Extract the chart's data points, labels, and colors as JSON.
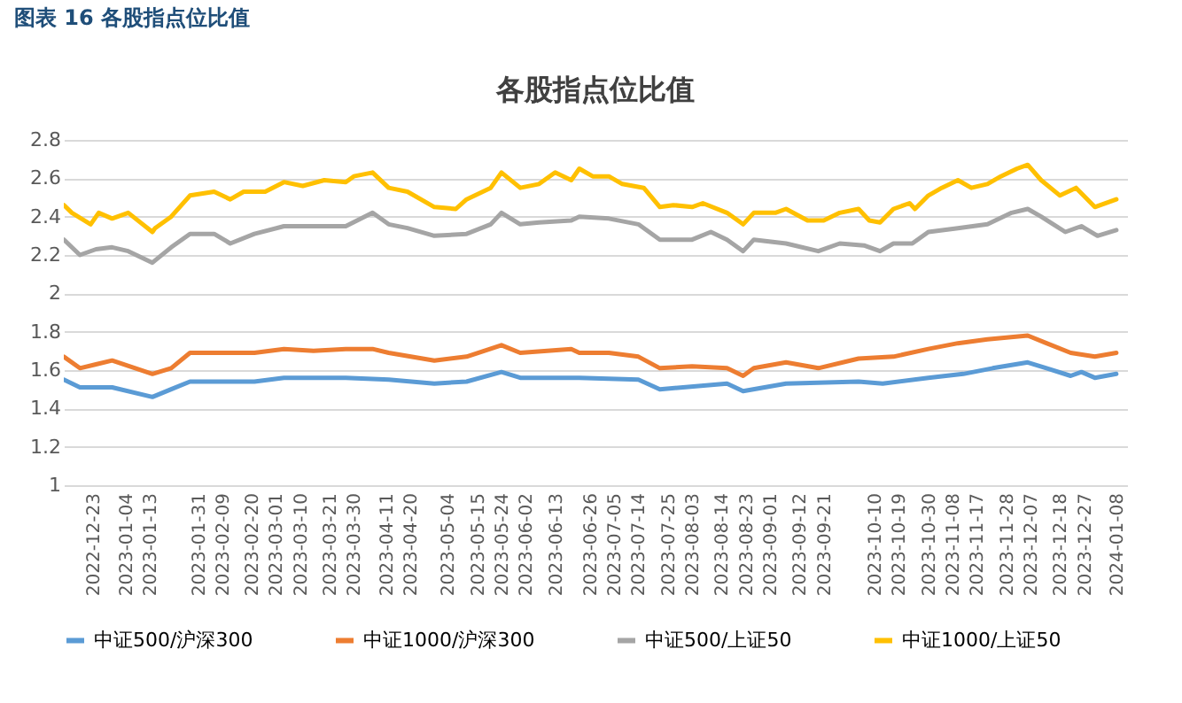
{
  "chart_data": {
    "type": "line",
    "title": "各股指点位比值",
    "annotations": [
      "图表 16  各股指点位比值"
    ],
    "ylim": [
      1,
      2.8
    ],
    "yticks": [
      1,
      1.2,
      1.4,
      1.6,
      1.8,
      2,
      2.2,
      2.4,
      2.6,
      2.8
    ],
    "xlim": [
      "2022-12-12",
      "2024-01-12"
    ],
    "xticks": [
      "2022-12-23",
      "2023-01-04",
      "2023-01-13",
      "2023-01-31",
      "2023-02-09",
      "2023-02-20",
      "2023-03-01",
      "2023-03-10",
      "2023-03-21",
      "2023-03-30",
      "2023-04-11",
      "2023-04-20",
      "2023-05-04",
      "2023-05-15",
      "2023-05-24",
      "2023-06-02",
      "2023-06-13",
      "2023-06-26",
      "2023-07-05",
      "2023-07-14",
      "2023-07-25",
      "2023-08-03",
      "2023-08-14",
      "2023-08-23",
      "2023-09-01",
      "2023-09-12",
      "2023-09-21",
      "2023-10-10",
      "2023-10-19",
      "2023-10-30",
      "2023-11-08",
      "2023-11-17",
      "2023-11-28",
      "2023-12-07",
      "2023-12-18",
      "2023-12-27",
      "2024-01-08"
    ],
    "grid": "y",
    "legend": "bottom",
    "marker": "none",
    "line_style": "solid",
    "series": [
      {
        "name": "中证500/沪深300",
        "color": "#5b9bd5",
        "x": [
          "2022-12-12",
          "2022-12-18",
          "2022-12-30",
          "2023-01-14",
          "2023-01-21",
          "2023-01-28",
          "2023-02-21",
          "2023-03-04",
          "2023-03-27",
          "2023-04-12",
          "2023-04-29",
          "2023-05-11",
          "2023-05-24",
          "2023-05-31",
          "2023-06-22",
          "2023-07-14",
          "2023-07-22",
          "2023-08-16",
          "2023-08-22",
          "2023-09-07",
          "2023-10-04",
          "2023-10-13",
          "2023-10-30",
          "2023-11-12",
          "2023-11-23",
          "2023-12-06",
          "2023-12-13",
          "2023-12-22",
          "2023-12-26",
          "2023-12-31",
          "2024-01-08"
        ],
        "values": [
          1.55,
          1.51,
          1.51,
          1.46,
          1.5,
          1.54,
          1.54,
          1.56,
          1.56,
          1.55,
          1.53,
          1.54,
          1.59,
          1.56,
          1.56,
          1.55,
          1.5,
          1.53,
          1.49,
          1.53,
          1.54,
          1.53,
          1.56,
          1.58,
          1.61,
          1.64,
          1.61,
          1.57,
          1.59,
          1.56,
          1.58
        ]
      },
      {
        "name": "中证1000/沪深300",
        "color": "#ed7d31",
        "x": [
          "2022-12-12",
          "2022-12-18",
          "2022-12-24",
          "2022-12-30",
          "2023-01-14",
          "2023-01-21",
          "2023-01-28",
          "2023-02-06",
          "2023-02-21",
          "2023-03-04",
          "2023-03-15",
          "2023-03-27",
          "2023-04-06",
          "2023-04-12",
          "2023-04-29",
          "2023-05-11",
          "2023-05-24",
          "2023-05-31",
          "2023-06-19",
          "2023-06-22",
          "2023-07-03",
          "2023-07-14",
          "2023-07-22",
          "2023-08-03",
          "2023-08-16",
          "2023-08-22",
          "2023-08-26",
          "2023-09-07",
          "2023-09-19",
          "2023-10-04",
          "2023-10-17",
          "2023-10-30",
          "2023-11-10",
          "2023-11-21",
          "2023-12-06",
          "2023-12-13",
          "2023-12-22",
          "2023-12-31",
          "2024-01-08"
        ],
        "values": [
          1.67,
          1.61,
          1.63,
          1.65,
          1.58,
          1.61,
          1.69,
          1.69,
          1.69,
          1.71,
          1.7,
          1.71,
          1.71,
          1.69,
          1.65,
          1.67,
          1.73,
          1.69,
          1.71,
          1.69,
          1.69,
          1.67,
          1.61,
          1.62,
          1.61,
          1.57,
          1.61,
          1.64,
          1.61,
          1.66,
          1.67,
          1.71,
          1.74,
          1.76,
          1.78,
          1.74,
          1.69,
          1.67,
          1.69
        ]
      },
      {
        "name": "中证500/上证50",
        "color": "#a5a5a5",
        "x": [
          "2022-12-12",
          "2022-12-18",
          "2022-12-24",
          "2022-12-30",
          "2023-01-05",
          "2023-01-14",
          "2023-01-21",
          "2023-01-28",
          "2023-02-06",
          "2023-02-12",
          "2023-02-21",
          "2023-03-04",
          "2023-03-15",
          "2023-03-27",
          "2023-04-06",
          "2023-04-12",
          "2023-04-19",
          "2023-04-29",
          "2023-05-11",
          "2023-05-20",
          "2023-05-24",
          "2023-05-31",
          "2023-06-07",
          "2023-06-19",
          "2023-06-22",
          "2023-07-03",
          "2023-07-14",
          "2023-07-22",
          "2023-08-03",
          "2023-08-10",
          "2023-08-16",
          "2023-08-22",
          "2023-08-26",
          "2023-09-07",
          "2023-09-19",
          "2023-09-27",
          "2023-10-06",
          "2023-10-12",
          "2023-10-17",
          "2023-10-24",
          "2023-10-30",
          "2023-11-10",
          "2023-11-21",
          "2023-11-30",
          "2023-12-06",
          "2023-12-11",
          "2023-12-20",
          "2023-12-26",
          "2024-01-01",
          "2024-01-08"
        ],
        "values": [
          2.28,
          2.2,
          2.23,
          2.24,
          2.22,
          2.16,
          2.24,
          2.31,
          2.31,
          2.26,
          2.31,
          2.35,
          2.35,
          2.35,
          2.42,
          2.36,
          2.34,
          2.3,
          2.31,
          2.36,
          2.42,
          2.36,
          2.37,
          2.38,
          2.4,
          2.39,
          2.36,
          2.28,
          2.28,
          2.32,
          2.28,
          2.22,
          2.28,
          2.26,
          2.22,
          2.26,
          2.25,
          2.22,
          2.26,
          2.26,
          2.32,
          2.34,
          2.36,
          2.42,
          2.44,
          2.4,
          2.32,
          2.35,
          2.3,
          2.33
        ]
      },
      {
        "name": "中证1000/上证50",
        "color": "#ffc000",
        "x": [
          "2022-12-12",
          "2022-12-15",
          "2022-12-22",
          "2022-12-25",
          "2022-12-30",
          "2023-01-05",
          "2023-01-14",
          "2023-01-15",
          "2023-01-21",
          "2023-01-28",
          "2023-02-06",
          "2023-02-12",
          "2023-02-17",
          "2023-02-25",
          "2023-03-04",
          "2023-03-11",
          "2023-03-19",
          "2023-03-27",
          "2023-03-30",
          "2023-04-06",
          "2023-04-12",
          "2023-04-19",
          "2023-04-29",
          "2023-05-07",
          "2023-05-11",
          "2023-05-20",
          "2023-05-24",
          "2023-05-31",
          "2023-06-07",
          "2023-06-13",
          "2023-06-19",
          "2023-06-22",
          "2023-06-27",
          "2023-07-03",
          "2023-07-08",
          "2023-07-16",
          "2023-07-22",
          "2023-07-27",
          "2023-08-03",
          "2023-08-07",
          "2023-08-16",
          "2023-08-22",
          "2023-08-26",
          "2023-09-03",
          "2023-09-07",
          "2023-09-15",
          "2023-09-21",
          "2023-09-27",
          "2023-10-04",
          "2023-10-08",
          "2023-10-12",
          "2023-10-17",
          "2023-10-23",
          "2023-10-25",
          "2023-10-30",
          "2023-11-04",
          "2023-11-10",
          "2023-11-15",
          "2023-11-21",
          "2023-11-26",
          "2023-12-02",
          "2023-12-06",
          "2023-12-11",
          "2023-12-18",
          "2023-12-24",
          "2023-12-31",
          "2024-01-08"
        ],
        "values": [
          2.46,
          2.42,
          2.36,
          2.42,
          2.39,
          2.42,
          2.32,
          2.34,
          2.4,
          2.51,
          2.53,
          2.49,
          2.53,
          2.53,
          2.58,
          2.56,
          2.59,
          2.58,
          2.61,
          2.63,
          2.55,
          2.53,
          2.45,
          2.44,
          2.49,
          2.55,
          2.63,
          2.55,
          2.57,
          2.63,
          2.59,
          2.65,
          2.61,
          2.61,
          2.57,
          2.55,
          2.45,
          2.46,
          2.45,
          2.47,
          2.42,
          2.36,
          2.42,
          2.42,
          2.44,
          2.38,
          2.38,
          2.42,
          2.44,
          2.38,
          2.37,
          2.44,
          2.47,
          2.44,
          2.51,
          2.55,
          2.59,
          2.55,
          2.57,
          2.61,
          2.65,
          2.67,
          2.59,
          2.51,
          2.55,
          2.45,
          2.49
        ]
      }
    ]
  }
}
